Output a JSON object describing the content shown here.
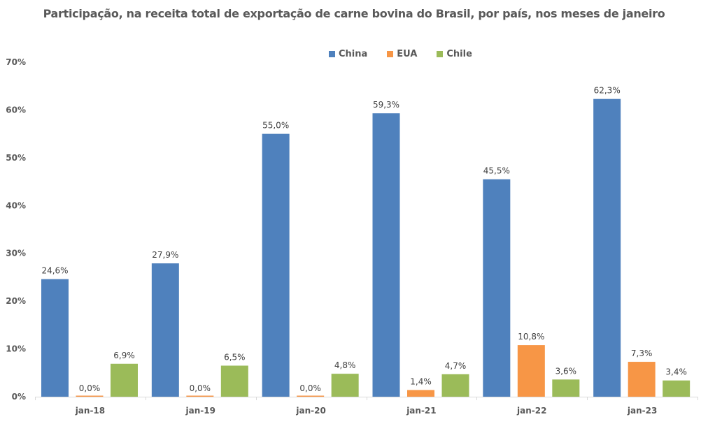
{
  "chart_data": {
    "type": "bar",
    "title": "Participação, na receita total de exportação de carne bovina do Brasil, por país, nos meses de janeiro",
    "xlabel": "",
    "ylabel": "",
    "ylim": [
      0,
      70
    ],
    "yticks": [
      0,
      10,
      20,
      30,
      40,
      50,
      60,
      70
    ],
    "ytick_labels": [
      "0%",
      "10%",
      "20%",
      "30%",
      "40%",
      "50%",
      "60%",
      "70%"
    ],
    "grid": false,
    "legend_position": "top-center",
    "categories": [
      "jan-18",
      "jan-19",
      "jan-20",
      "jan-21",
      "jan-22",
      "jan-23"
    ],
    "series": [
      {
        "name": "China",
        "color": "#4F81BD",
        "values": [
          24.6,
          27.9,
          55.0,
          59.3,
          45.5,
          62.3
        ],
        "labels": [
          "24,6%",
          "27,9%",
          "55,0%",
          "59,3%",
          "45,5%",
          "62,3%"
        ]
      },
      {
        "name": "EUA",
        "color": "#F79646",
        "values": [
          0.0,
          0.0,
          0.0,
          1.4,
          10.8,
          7.3
        ],
        "labels": [
          "0,0%",
          "0,0%",
          "0,0%",
          "1,4%",
          "10,8%",
          "7,3%"
        ]
      },
      {
        "name": "Chile",
        "color": "#9BBB59",
        "values": [
          6.9,
          6.5,
          4.8,
          4.7,
          3.6,
          3.4
        ],
        "labels": [
          "6,9%",
          "6,5%",
          "4,8%",
          "4,7%",
          "3,6%",
          "3,4%"
        ]
      }
    ]
  }
}
